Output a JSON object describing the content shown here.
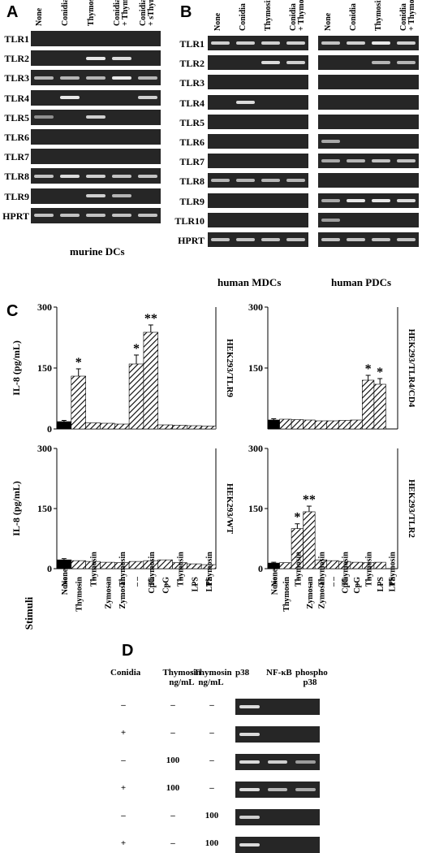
{
  "panels": {
    "A": {
      "letter": "A",
      "columns": [
        "None",
        "Conidia",
        "Thymosin α 1",
        "Conidia + Thymosin α 1",
        "Conidia + sThymosin α 1"
      ],
      "rows": [
        {
          "label": "TLR1",
          "bands": [
            0,
            0,
            0,
            0,
            0
          ]
        },
        {
          "label": "TLR2",
          "bands": [
            0,
            0,
            1,
            0.9,
            0
          ]
        },
        {
          "label": "TLR3",
          "bands": [
            0.6,
            0.6,
            0.6,
            1,
            0.6
          ]
        },
        {
          "label": "TLR4",
          "bands": [
            0,
            1,
            0,
            0,
            0.8
          ]
        },
        {
          "label": "TLR5",
          "bands": [
            0.3,
            0,
            0.8,
            0,
            0
          ]
        },
        {
          "label": "TLR6",
          "bands": [
            0,
            0,
            0,
            0,
            0
          ]
        },
        {
          "label": "TLR7",
          "bands": [
            0,
            0,
            0,
            0,
            0
          ]
        },
        {
          "label": "TLR8",
          "bands": [
            0.7,
            0.9,
            0.8,
            0.7,
            0.7
          ]
        },
        {
          "label": "TLR9",
          "bands": [
            0,
            0,
            0.8,
            0.6,
            0
          ]
        },
        {
          "label": "HPRT",
          "bands": [
            0.7,
            0.7,
            0.7,
            0.7,
            0.7
          ]
        }
      ],
      "caption": "murine DCs"
    },
    "B": {
      "letter": "B",
      "columns": [
        "None",
        "Conidia",
        "Thymosin α 1",
        "Conidia + Thymosin α 1"
      ],
      "rows": [
        {
          "label": "TLR1",
          "mdc": [
            0.8,
            0.8,
            0.8,
            0.8
          ],
          "pdc": [
            0.7,
            0.8,
            1,
            0.8
          ]
        },
        {
          "label": "TLR2",
          "mdc": [
            0,
            0,
            0.9,
            0.8
          ],
          "pdc": [
            0,
            0,
            0.6,
            0.6
          ]
        },
        {
          "label": "TLR3",
          "mdc": [
            0,
            0,
            0,
            0
          ],
          "pdc": [
            0,
            0,
            0,
            0
          ]
        },
        {
          "label": "TLR4",
          "mdc": [
            0,
            0.9,
            0,
            0
          ],
          "pdc": [
            0,
            0,
            0,
            0
          ]
        },
        {
          "label": "TLR5",
          "mdc": [
            0,
            0,
            0,
            0
          ],
          "pdc": [
            0,
            0,
            0,
            0
          ]
        },
        {
          "label": "TLR6",
          "mdc": [
            0,
            0,
            0,
            0
          ],
          "pdc": [
            0.5,
            0,
            0,
            0
          ]
        },
        {
          "label": "TLR7",
          "mdc": [
            0,
            0,
            0,
            0
          ],
          "pdc": [
            0.5,
            0.6,
            0.7,
            0.7
          ]
        },
        {
          "label": "TLR8",
          "mdc": [
            0.6,
            0.6,
            0.6,
            0.6
          ],
          "pdc": [
            0,
            0,
            0,
            0
          ]
        },
        {
          "label": "TLR9",
          "mdc": [
            0,
            0,
            0,
            0
          ],
          "pdc": [
            0.5,
            1,
            1,
            0.9
          ]
        },
        {
          "label": "TLR10",
          "mdc": [
            0,
            0,
            0,
            0
          ],
          "pdc": [
            0.4,
            0,
            0,
            0
          ]
        },
        {
          "label": "HPRT",
          "mdc": [
            0.7,
            0.7,
            0.7,
            0.7
          ],
          "pdc": [
            0.7,
            0.7,
            0.7,
            0.7
          ]
        }
      ],
      "caption_mdc": "human MDCs",
      "caption_pdc": "human PDCs"
    },
    "C": {
      "letter": "C",
      "ylabel": "IL-8 (pg/mL)",
      "stimuli_label": "Stimuli",
      "row1_labels": [
        "None",
        "Thymosin",
        "–",
        "Zymosan",
        "Zymosan",
        "–",
        "CpG",
        "CpG",
        "–",
        "LPS",
        "LPS"
      ],
      "row2_labels": [
        "None",
        "–",
        "Thymosin",
        "–",
        "Thymosin",
        "–",
        "Thymosin",
        "–",
        "Thymosin",
        "–",
        "Thymosin"
      ]
    },
    "D": {
      "letter": "D",
      "headers": {
        "conidia": "Conidia",
        "thymosin": "Thymosin ng/mL",
        "sthymosin": "sThymosin ng/mL",
        "p38": "p38",
        "nfkb": "NF-κB",
        "phospho": "phospho p38"
      },
      "rows": [
        {
          "conidia": "–",
          "thymosin": "–",
          "sthymosin": "–",
          "bands": [
            0.9,
            0,
            0
          ]
        },
        {
          "conidia": "+",
          "thymosin": "–",
          "sthymosin": "–",
          "bands": [
            0.9,
            0,
            0
          ]
        },
        {
          "conidia": "–",
          "thymosin": "100",
          "sthymosin": "–",
          "bands": [
            0.9,
            0.8,
            0.4
          ]
        },
        {
          "conidia": "+",
          "thymosin": "100",
          "sthymosin": "–",
          "bands": [
            0.9,
            0.6,
            0.5
          ]
        },
        {
          "conidia": "–",
          "thymosin": "–",
          "sthymosin": "100",
          "bands": [
            0.8,
            0,
            0
          ]
        },
        {
          "conidia": "+",
          "thymosin": "–",
          "sthymosin": "100",
          "bands": [
            0.9,
            0,
            0
          ]
        }
      ]
    }
  },
  "chart_data": [
    {
      "type": "bar",
      "subplot": "HEK293/TLR9",
      "ylabel": "IL-8 (pg/mL)",
      "ylim": [
        0,
        300
      ],
      "yticks": [
        "300",
        "150",
        "0"
      ],
      "categories": [
        "None/None",
        "Thymosin/–",
        "–/Zymosan",
        "Zymosan/–",
        "Zymosan/Thymosin",
        "–/CpG",
        "CpG/–",
        "CpG/Thymosin",
        "–/LPS",
        "LPS/–",
        "LPS/Thymosin"
      ],
      "values": [
        18,
        130,
        15,
        14,
        12,
        160,
        238,
        10,
        9,
        8,
        7
      ],
      "errors": [
        3,
        18,
        0,
        0,
        0,
        22,
        18,
        0,
        0,
        0,
        0
      ],
      "significance": [
        "",
        "*",
        "",
        "",
        "",
        "*",
        "**",
        "",
        "",
        "",
        ""
      ]
    },
    {
      "type": "bar",
      "subplot": "HEK293/TLR4/CD4",
      "ylim": [
        0,
        300
      ],
      "yticks": [
        "300",
        "150"
      ],
      "categories": [
        "None/None",
        "Thymosin/–",
        "–/Zymosan",
        "Zymosan/–",
        "Zymosan/Thymosin",
        "–/CpG",
        "CpG/–",
        "CpG/Thymosin",
        "–/LPS",
        "LPS/–",
        "LPS/Thymosin"
      ],
      "values": [
        22,
        24,
        23,
        22,
        20,
        20,
        21,
        22,
        120,
        110,
        0
      ],
      "errors": [
        3,
        0,
        0,
        0,
        0,
        0,
        0,
        0,
        12,
        14,
        0
      ],
      "significance": [
        "",
        "",
        "",
        "",
        "",
        "",
        "",
        "",
        "*",
        "*",
        ""
      ]
    },
    {
      "type": "bar",
      "subplot": "HEK293/WT",
      "ylabel": "IL-8 (pg/mL)",
      "ylim": [
        0,
        300
      ],
      "yticks": [
        "300",
        "150",
        "0"
      ],
      "categories": [
        "None/None",
        "Thymosin/–",
        "–/Zymosan",
        "Zymosan/–",
        "Zymosan/Thymosin",
        "–/CpG",
        "CpG/–",
        "CpG/Thymosin",
        "–/LPS",
        "LPS/–",
        "LPS/Thymosin"
      ],
      "values": [
        22,
        20,
        18,
        16,
        15,
        18,
        20,
        22,
        15,
        12,
        10
      ],
      "errors": [
        3,
        0,
        0,
        0,
        0,
        0,
        0,
        0,
        0,
        0,
        0
      ],
      "significance": [
        "",
        "",
        "",
        "",
        "",
        "",
        "",
        "",
        "",
        "",
        ""
      ]
    },
    {
      "type": "bar",
      "subplot": "HEK293/TLR2",
      "ylim": [
        0,
        300
      ],
      "yticks": [
        "300",
        "150",
        "0"
      ],
      "categories": [
        "None/None",
        "Thymosin/–",
        "–/Zymosan",
        "Zymosan/–",
        "Zymosan/Thymosin",
        "–/CpG",
        "CpG/–",
        "CpG/Thymosin",
        "–/LPS",
        "LPS/–",
        "LPS/Thymosin"
      ],
      "values": [
        14,
        15,
        100,
        142,
        22,
        20,
        18,
        16,
        15,
        16,
        0
      ],
      "errors": [
        2,
        0,
        12,
        14,
        0,
        0,
        0,
        0,
        0,
        0,
        0
      ],
      "significance": [
        "",
        "",
        "*",
        "**",
        "",
        "",
        "",
        "",
        "",
        "",
        ""
      ]
    }
  ]
}
